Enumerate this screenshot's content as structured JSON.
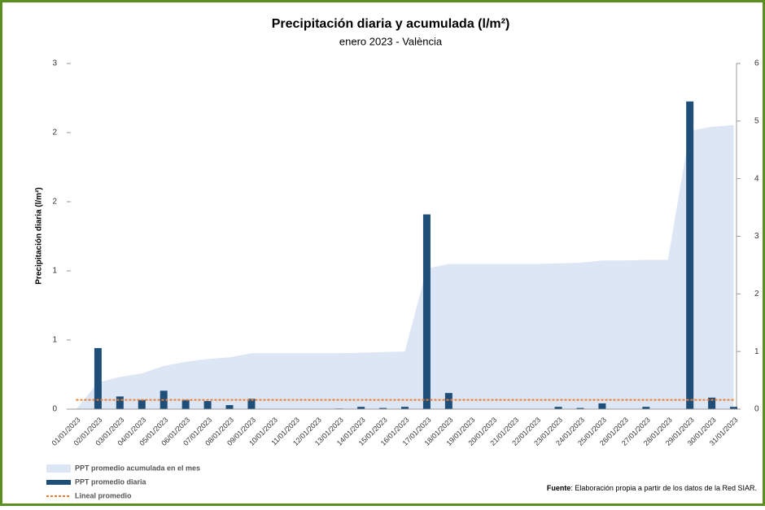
{
  "chart_data": {
    "type": "bar-area",
    "title": "Precipitación diaria y acumulada (l/m²)",
    "subtitle": "enero 2023 - València",
    "y_label": "Precipitación diaria (l/m²)",
    "categories": [
      "01/01/2023",
      "02/01/2023",
      "03/01/2023",
      "04/01/2023",
      "05/01/2023",
      "06/01/2023",
      "07/01/2023",
      "08/01/2023",
      "09/01/2023",
      "10/01/2023",
      "11/01/2023",
      "12/01/2023",
      "13/01/2023",
      "14/01/2023",
      "15/01/2023",
      "16/01/2023",
      "17/01/2023",
      "18/01/2023",
      "19/01/2023",
      "20/01/2023",
      "21/01/2023",
      "22/01/2023",
      "23/01/2023",
      "24/01/2023",
      "25/01/2023",
      "26/01/2023",
      "27/01/2023",
      "28/01/2023",
      "29/01/2023",
      "30/01/2023",
      "31/01/2023"
    ],
    "series": [
      {
        "name": "PPT promedio acumulada en el mes",
        "color": "#dce6f4",
        "kind": "area",
        "axis": "y2",
        "values": [
          0,
          0.46,
          0.56,
          0.62,
          0.75,
          0.82,
          0.87,
          0.9,
          0.97,
          0.97,
          0.97,
          0.97,
          0.97,
          0.98,
          0.99,
          1.0,
          2.44,
          2.52,
          2.52,
          2.52,
          2.52,
          2.52,
          2.53,
          2.54,
          2.58,
          2.58,
          2.59,
          2.59,
          4.83,
          4.9,
          4.93
        ]
      },
      {
        "name": "PPT promedio diaria",
        "color": "#1f4e79",
        "kind": "bar",
        "values": [
          0,
          0.53,
          0.11,
          0.08,
          0.16,
          0.08,
          0.07,
          0.035,
          0.09,
          0,
          0,
          0,
          0.005,
          0.02,
          0.01,
          0.02,
          1.69,
          0.14,
          0,
          0,
          0,
          0,
          0.02,
          0.01,
          0.05,
          0,
          0.02,
          0,
          2.67,
          0.1,
          0.02
        ]
      },
      {
        "name": "Lineal promedio",
        "color": "#ed7d31",
        "kind": "line",
        "values": [
          0.08,
          0.08,
          0.08,
          0.08,
          0.08,
          0.08,
          0.08,
          0.08,
          0.08,
          0.08,
          0.08,
          0.08,
          0.08,
          0.08,
          0.08,
          0.08,
          0.08,
          0.08,
          0.08,
          0.08,
          0.08,
          0.08,
          0.08,
          0.08,
          0.08,
          0.08,
          0.08,
          0.08,
          0.08,
          0.08,
          0.08
        ]
      }
    ],
    "ylim": [
      0,
      3
    ],
    "yticks": [
      0,
      {
        "value": 0.6,
        "label": "1"
      },
      {
        "value": 1.2,
        "label": "1"
      },
      {
        "value": 1.8,
        "label": "2"
      },
      {
        "value": 2.4,
        "label": "2"
      },
      3
    ],
    "y2lim": [
      0,
      6
    ],
    "y2ticks": [
      0,
      1,
      2,
      3,
      4,
      5,
      6
    ],
    "source_label": "Fuente",
    "source_text": ": Elaboración propia a partir de los datos de la Red SIAR."
  }
}
